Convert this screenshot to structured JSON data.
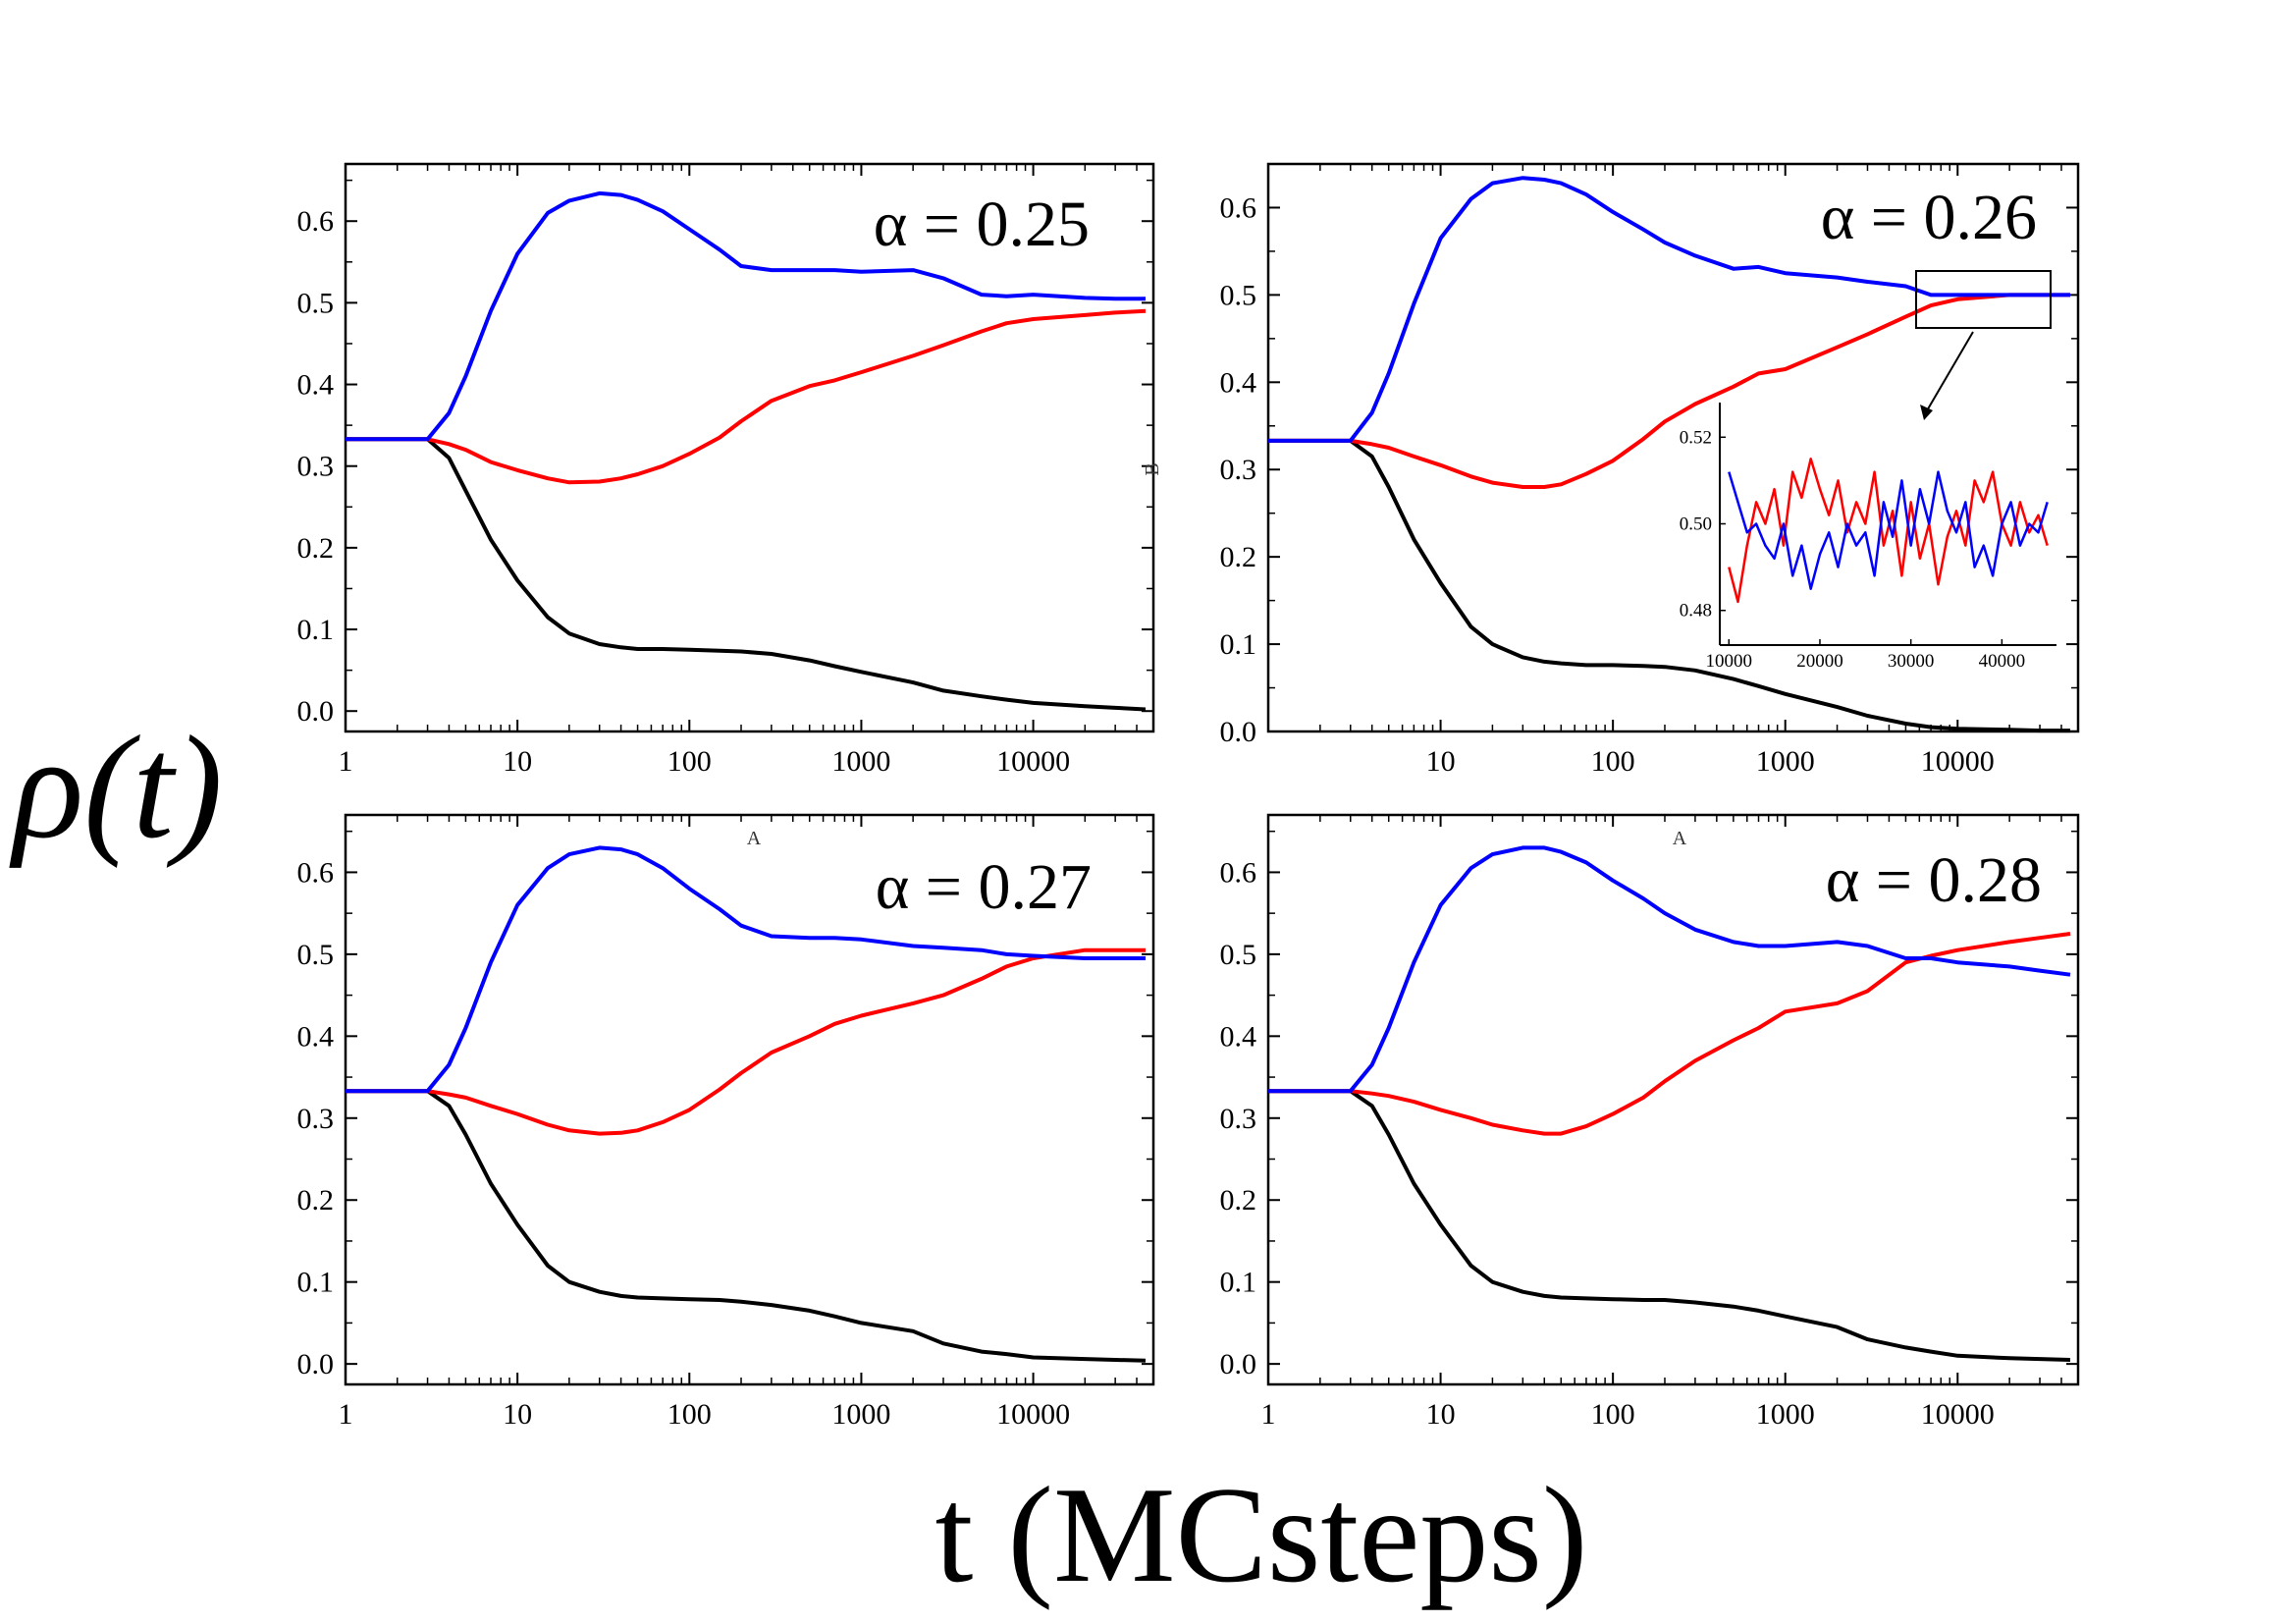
{
  "figure": {
    "ylabel": "ρ(t)",
    "xlabel": "t (MCsteps)",
    "artifacts": {
      "a1": "A",
      "a2": "A",
      "b": "B"
    },
    "colors": {
      "black": "#000000",
      "red": "#ff0000",
      "blue": "#0000ff"
    }
  },
  "chart_data": [
    {
      "type": "line",
      "title": "α = 0.25",
      "xscale": "log",
      "xlim": [
        1,
        50000
      ],
      "ylim": [
        -0.025,
        0.67
      ],
      "xticks": [
        "1",
        "10",
        "100",
        "1000",
        "10000"
      ],
      "yticks": [
        "0.0",
        "0.1",
        "0.2",
        "0.3",
        "0.4",
        "0.5",
        "0.6"
      ],
      "x": [
        1,
        2,
        3,
        4,
        5,
        7,
        10,
        15,
        20,
        30,
        40,
        50,
        70,
        100,
        150,
        200,
        300,
        500,
        700,
        1000,
        2000,
        3000,
        5000,
        7000,
        10000,
        20000,
        30000,
        45000
      ],
      "series": [
        {
          "name": "black",
          "color": "#000000",
          "values": [
            0.333,
            0.333,
            0.333,
            0.31,
            0.27,
            0.21,
            0.16,
            0.115,
            0.095,
            0.082,
            0.078,
            0.076,
            0.076,
            0.075,
            0.074,
            0.073,
            0.07,
            0.062,
            0.055,
            0.048,
            0.035,
            0.025,
            0.018,
            0.014,
            0.01,
            0.006,
            0.004,
            0.002
          ]
        },
        {
          "name": "red",
          "color": "#ff0000",
          "values": [
            0.333,
            0.333,
            0.333,
            0.327,
            0.32,
            0.305,
            0.295,
            0.285,
            0.28,
            0.281,
            0.285,
            0.29,
            0.3,
            0.315,
            0.335,
            0.355,
            0.38,
            0.398,
            0.405,
            0.415,
            0.435,
            0.448,
            0.465,
            0.475,
            0.48,
            0.485,
            0.488,
            0.49
          ]
        },
        {
          "name": "blue",
          "color": "#0000ff",
          "values": [
            0.333,
            0.333,
            0.333,
            0.365,
            0.41,
            0.49,
            0.56,
            0.61,
            0.625,
            0.634,
            0.632,
            0.626,
            0.612,
            0.59,
            0.565,
            0.545,
            0.54,
            0.54,
            0.54,
            0.538,
            0.54,
            0.53,
            0.51,
            0.508,
            0.51,
            0.506,
            0.505,
            0.505
          ]
        }
      ]
    },
    {
      "type": "line",
      "title": "α = 0.26",
      "xscale": "log",
      "xlim": [
        1,
        50000
      ],
      "ylim": [
        0.0,
        0.65
      ],
      "xticks": [
        "10",
        "100",
        "1000",
        "10000"
      ],
      "yticks": [
        "0.0",
        "0.1",
        "0.2",
        "0.3",
        "0.4",
        "0.5",
        "0.6"
      ],
      "x": [
        1,
        2,
        3,
        4,
        5,
        7,
        10,
        15,
        20,
        30,
        40,
        50,
        70,
        100,
        150,
        200,
        300,
        500,
        700,
        1000,
        2000,
        3000,
        5000,
        7000,
        10000,
        20000,
        30000,
        45000
      ],
      "series": [
        {
          "name": "black",
          "color": "#000000",
          "values": [
            0.333,
            0.333,
            0.333,
            0.315,
            0.28,
            0.22,
            0.17,
            0.12,
            0.1,
            0.085,
            0.08,
            0.078,
            0.076,
            0.076,
            0.075,
            0.074,
            0.07,
            0.06,
            0.052,
            0.043,
            0.028,
            0.018,
            0.009,
            0.005,
            0.003,
            0.002,
            0.001,
            0.001
          ]
        },
        {
          "name": "red",
          "color": "#ff0000",
          "values": [
            0.333,
            0.333,
            0.333,
            0.329,
            0.325,
            0.315,
            0.305,
            0.292,
            0.285,
            0.28,
            0.28,
            0.283,
            0.295,
            0.31,
            0.335,
            0.355,
            0.375,
            0.395,
            0.41,
            0.415,
            0.44,
            0.455,
            0.475,
            0.488,
            0.495,
            0.5,
            0.5,
            0.5
          ]
        },
        {
          "name": "blue",
          "color": "#0000ff",
          "values": [
            0.333,
            0.333,
            0.333,
            0.365,
            0.41,
            0.49,
            0.565,
            0.61,
            0.628,
            0.634,
            0.632,
            0.628,
            0.615,
            0.595,
            0.575,
            0.56,
            0.545,
            0.53,
            0.532,
            0.525,
            0.52,
            0.515,
            0.51,
            0.5,
            0.5,
            0.5,
            0.5,
            0.5
          ]
        }
      ],
      "inset": {
        "xlim": [
          9000,
          46000
        ],
        "ylim": [
          0.472,
          0.528
        ],
        "xticks": [
          "10000",
          "20000",
          "30000",
          "40000"
        ],
        "yticks": [
          "0.48",
          "0.50",
          "0.52"
        ],
        "x": [
          10000,
          11000,
          12000,
          13000,
          14000,
          15000,
          16000,
          17000,
          18000,
          19000,
          20000,
          21000,
          22000,
          23000,
          24000,
          25000,
          26000,
          27000,
          28000,
          29000,
          30000,
          31000,
          32000,
          33000,
          34000,
          35000,
          36000,
          37000,
          38000,
          39000,
          40000,
          41000,
          42000,
          43000,
          44000,
          45000
        ],
        "series": [
          {
            "name": "red",
            "color": "#ff0000",
            "values": [
              0.49,
              0.482,
              0.495,
              0.505,
              0.5,
              0.508,
              0.495,
              0.512,
              0.506,
              0.515,
              0.508,
              0.502,
              0.51,
              0.498,
              0.505,
              0.5,
              0.512,
              0.495,
              0.503,
              0.488,
              0.505,
              0.492,
              0.5,
              0.486,
              0.497,
              0.503,
              0.495,
              0.51,
              0.505,
              0.512,
              0.5,
              0.495,
              0.505,
              0.498,
              0.502,
              0.495
            ]
          },
          {
            "name": "blue",
            "color": "#0000ff",
            "values": [
              0.512,
              0.505,
              0.498,
              0.5,
              0.495,
              0.492,
              0.5,
              0.488,
              0.495,
              0.485,
              0.493,
              0.498,
              0.49,
              0.5,
              0.495,
              0.498,
              0.488,
              0.505,
              0.497,
              0.51,
              0.495,
              0.508,
              0.5,
              0.512,
              0.503,
              0.498,
              0.505,
              0.49,
              0.495,
              0.488,
              0.5,
              0.505,
              0.495,
              0.5,
              0.498,
              0.505
            ]
          }
        ]
      }
    },
    {
      "type": "line",
      "title": "α = 0.27",
      "xscale": "log",
      "xlim": [
        1,
        50000
      ],
      "ylim": [
        -0.025,
        0.67
      ],
      "xticks": [
        "1",
        "10",
        "100",
        "1000",
        "10000"
      ],
      "yticks": [
        "0.0",
        "0.1",
        "0.2",
        "0.3",
        "0.4",
        "0.5",
        "0.6"
      ],
      "x": [
        1,
        2,
        3,
        4,
        5,
        7,
        10,
        15,
        20,
        30,
        40,
        50,
        70,
        100,
        150,
        200,
        300,
        500,
        700,
        1000,
        2000,
        3000,
        5000,
        7000,
        10000,
        20000,
        30000,
        45000
      ],
      "series": [
        {
          "name": "black",
          "color": "#000000",
          "values": [
            0.333,
            0.333,
            0.333,
            0.315,
            0.28,
            0.22,
            0.17,
            0.12,
            0.1,
            0.088,
            0.083,
            0.081,
            0.08,
            0.079,
            0.078,
            0.076,
            0.072,
            0.065,
            0.058,
            0.05,
            0.04,
            0.025,
            0.015,
            0.012,
            0.008,
            0.006,
            0.005,
            0.004
          ]
        },
        {
          "name": "red",
          "color": "#ff0000",
          "values": [
            0.333,
            0.333,
            0.333,
            0.329,
            0.325,
            0.315,
            0.305,
            0.292,
            0.285,
            0.281,
            0.282,
            0.285,
            0.295,
            0.31,
            0.335,
            0.355,
            0.38,
            0.4,
            0.415,
            0.425,
            0.44,
            0.45,
            0.47,
            0.485,
            0.495,
            0.505,
            0.505,
            0.505
          ]
        },
        {
          "name": "blue",
          "color": "#0000ff",
          "values": [
            0.333,
            0.333,
            0.333,
            0.365,
            0.41,
            0.49,
            0.56,
            0.605,
            0.622,
            0.63,
            0.628,
            0.622,
            0.605,
            0.58,
            0.555,
            0.535,
            0.522,
            0.52,
            0.52,
            0.518,
            0.51,
            0.508,
            0.505,
            0.5,
            0.498,
            0.495,
            0.495,
            0.495
          ]
        }
      ]
    },
    {
      "type": "line",
      "title": "α = 0.28",
      "xscale": "log",
      "xlim": [
        1,
        50000
      ],
      "ylim": [
        -0.025,
        0.67
      ],
      "xticks": [
        "1",
        "10",
        "100",
        "1000",
        "10000"
      ],
      "yticks": [
        "0.0",
        "0.1",
        "0.2",
        "0.3",
        "0.4",
        "0.5",
        "0.6"
      ],
      "x": [
        1,
        2,
        3,
        4,
        5,
        7,
        10,
        15,
        20,
        30,
        40,
        50,
        70,
        100,
        150,
        200,
        300,
        500,
        700,
        1000,
        2000,
        3000,
        5000,
        7000,
        10000,
        20000,
        30000,
        45000
      ],
      "series": [
        {
          "name": "black",
          "color": "#000000",
          "values": [
            0.333,
            0.333,
            0.333,
            0.315,
            0.28,
            0.22,
            0.17,
            0.12,
            0.1,
            0.088,
            0.083,
            0.081,
            0.08,
            0.079,
            0.078,
            0.078,
            0.075,
            0.07,
            0.065,
            0.058,
            0.045,
            0.03,
            0.02,
            0.015,
            0.01,
            0.007,
            0.006,
            0.005
          ]
        },
        {
          "name": "red",
          "color": "#ff0000",
          "values": [
            0.333,
            0.333,
            0.333,
            0.33,
            0.327,
            0.32,
            0.31,
            0.3,
            0.292,
            0.285,
            0.281,
            0.281,
            0.29,
            0.305,
            0.325,
            0.345,
            0.37,
            0.395,
            0.41,
            0.43,
            0.44,
            0.455,
            0.49,
            0.498,
            0.505,
            0.515,
            0.52,
            0.525
          ]
        },
        {
          "name": "blue",
          "color": "#0000ff",
          "values": [
            0.333,
            0.333,
            0.333,
            0.365,
            0.41,
            0.49,
            0.56,
            0.605,
            0.622,
            0.63,
            0.63,
            0.625,
            0.612,
            0.59,
            0.568,
            0.55,
            0.53,
            0.515,
            0.51,
            0.51,
            0.515,
            0.51,
            0.495,
            0.495,
            0.49,
            0.485,
            0.48,
            0.475
          ]
        }
      ]
    }
  ]
}
